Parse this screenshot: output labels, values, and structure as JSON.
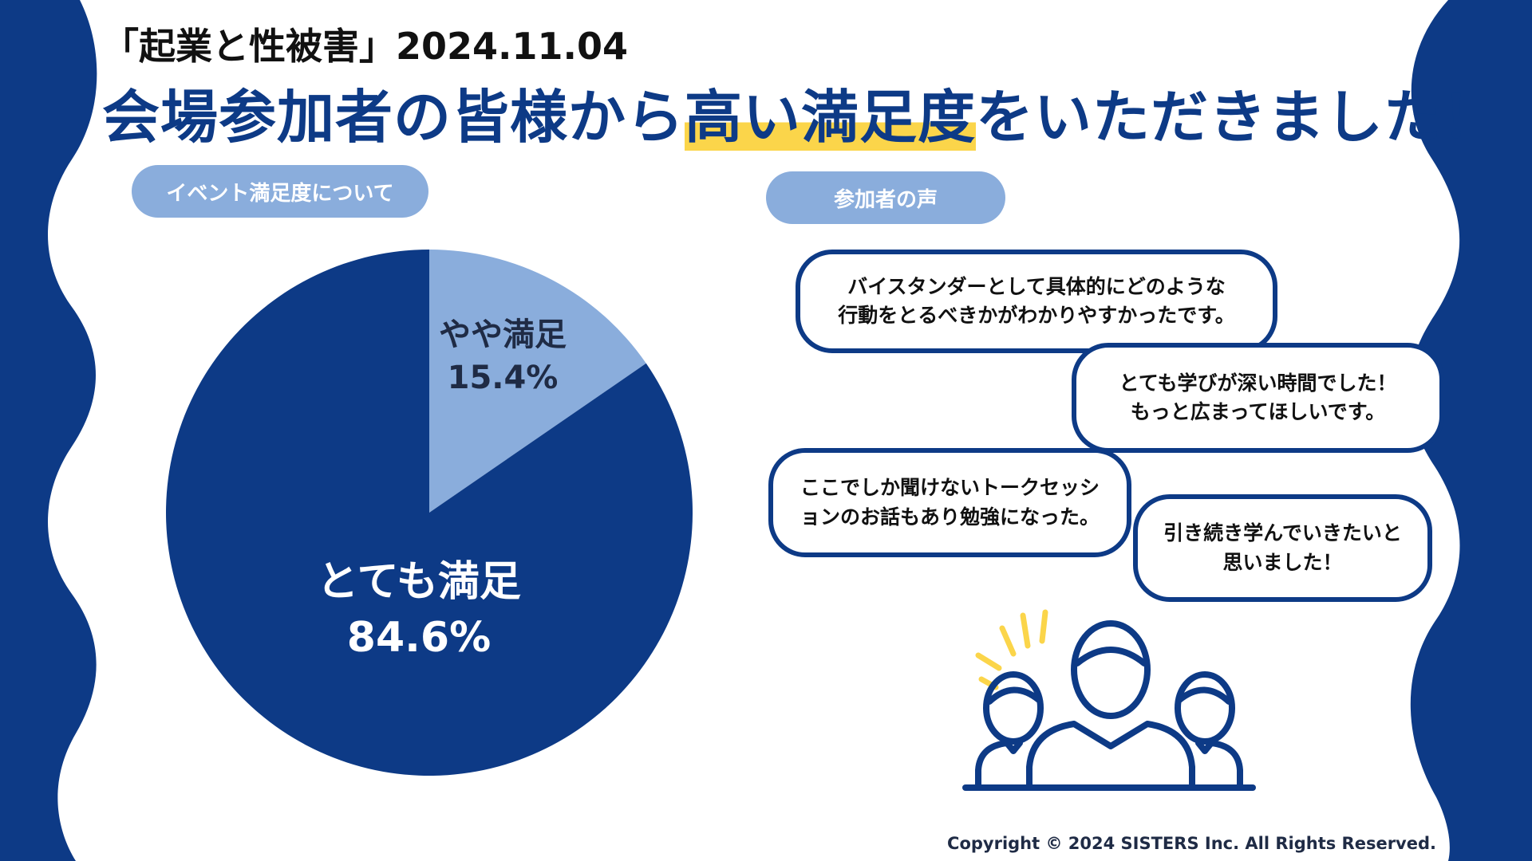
{
  "header": {
    "event_date": "「起業と性被害」2024.11.04",
    "headline_pre": "会場参加者の皆様から",
    "headline_highlight": "高い満足度",
    "headline_post": "をいただきました！"
  },
  "sections": {
    "satisfaction_title": "イベント満足度について",
    "voices_title": "参加者の声"
  },
  "chart_data": {
    "type": "pie",
    "title": "イベント満足度について",
    "categories": [
      "やや満足",
      "とても満足"
    ],
    "values": [
      15.4,
      84.6
    ],
    "value_labels": [
      "15.4%",
      "84.6%"
    ],
    "colors": [
      "#8aaddc",
      "#0d3a86"
    ]
  },
  "voices": [
    "バイスタンダーとして具体的にどのような\n行動をとるべきかがわかりやすかったです。",
    "とても学びが深い時間でした！\nもっと広まってほしいです。",
    "ここでしか聞けないトークセッシ\nョンのお話もあり勉強になった。",
    "引き続き学んでいきたいと\n思いました！"
  ],
  "icons": {
    "people": "people-group-icon",
    "sparkle": "sparkle-lines-icon"
  },
  "colors": {
    "brand_navy": "#0d3a86",
    "light_blue": "#8aaddc",
    "highlight_yellow": "#fbd54a"
  },
  "footer": {
    "copyright": "Copyright © 2024 SISTERS Inc. All Rights Reserved."
  }
}
